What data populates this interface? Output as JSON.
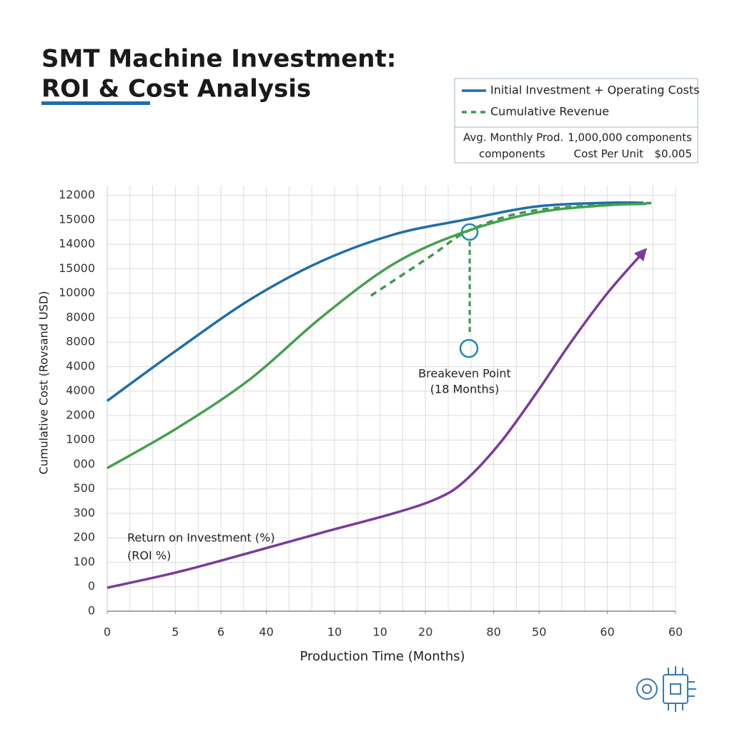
{
  "chart_data": {
    "type": "line",
    "title_lines": [
      "SMT Machine Investment:",
      "ROI & Cost Analysis"
    ],
    "x_label": "Production Time (Months)",
    "y_label": "Cumulative Cost (Rovsand USD)",
    "xlim": [
      0,
      25
    ],
    "ylim": [
      0,
      17.4
    ],
    "xticks": [
      {
        "value": 0,
        "label": "0"
      },
      {
        "value": 3,
        "label": "5"
      },
      {
        "value": 5,
        "label": "6"
      },
      {
        "value": 7,
        "label": "40"
      },
      {
        "value": 10,
        "label": "10"
      },
      {
        "value": 12,
        "label": "10"
      },
      {
        "value": 14,
        "label": "20"
      },
      {
        "value": 17,
        "label": "80"
      },
      {
        "value": 19,
        "label": "50"
      },
      {
        "value": 22,
        "label": "60"
      },
      {
        "value": 25,
        "label": "60"
      }
    ],
    "yticks": [
      {
        "value": 0,
        "label": "0"
      },
      {
        "value": 1,
        "label": "0"
      },
      {
        "value": 2,
        "label": "100"
      },
      {
        "value": 3,
        "label": "200"
      },
      {
        "value": 4,
        "label": "300"
      },
      {
        "value": 5,
        "label": "500"
      },
      {
        "value": 6,
        "label": "000"
      },
      {
        "value": 7,
        "label": "1000"
      },
      {
        "value": 8,
        "label": "2000"
      },
      {
        "value": 9,
        "label": "4000"
      },
      {
        "value": 10,
        "label": "4000"
      },
      {
        "value": 11,
        "label": "8000"
      },
      {
        "value": 12,
        "label": "8000"
      },
      {
        "value": 13,
        "label": "10000"
      },
      {
        "value": 14,
        "label": "15000"
      },
      {
        "value": 15,
        "label": "14000"
      },
      {
        "value": 16,
        "label": "15000"
      },
      {
        "value": 17,
        "label": "12000"
      }
    ],
    "grid": true,
    "series": [
      {
        "name": "Initial Investment + Operating Costs",
        "color": "#1f6ea8",
        "dash": false,
        "x": [
          0,
          3.1,
          6.3,
          9.4,
          12.6,
          15.7,
          18.9,
          22,
          23.6
        ],
        "values": [
          8.6,
          10.7,
          12.75,
          14.3,
          15.4,
          16.0,
          16.55,
          16.7,
          16.7
        ]
      },
      {
        "name": "Cumulative Revenue",
        "color": "#3a9c4a",
        "dash": true,
        "x": [
          11.6,
          14.2,
          16,
          18.9,
          24.1
        ],
        "values": [
          12.9,
          14.5,
          15.6,
          16.4,
          16.7
        ]
      },
      {
        "color": "#45a04e",
        "dash": false,
        "x": [
          0,
          3.1,
          6.3,
          9.4,
          12.6,
          15.7,
          18.9,
          22,
          23.7
        ],
        "values": [
          5.85,
          7.5,
          9.5,
          12.0,
          14.2,
          15.5,
          16.3,
          16.6,
          16.65
        ]
      },
      {
        "color": "#7b3a9c",
        "dash": false,
        "arrow": true,
        "x": [
          0,
          3.1,
          6.3,
          9.4,
          12.6,
          14.5,
          15.7,
          17.3,
          18.9,
          20.4,
          22,
          23.6
        ],
        "values": [
          0.96,
          1.6,
          2.4,
          3.2,
          4.0,
          4.6,
          5.3,
          6.9,
          8.95,
          11.0,
          13.0,
          14.7
        ]
      }
    ],
    "info_box": [
      [
        "Avg. Monthly Prod.",
        "1,000,000 components"
      ],
      [
        "components",
        "Cost Per Unit",
        "$0.005"
      ]
    ],
    "annotations": [
      "Breakeven Point",
      "(18 Months)",
      "Return on Investment (%)",
      "(ROI %)"
    ]
  }
}
